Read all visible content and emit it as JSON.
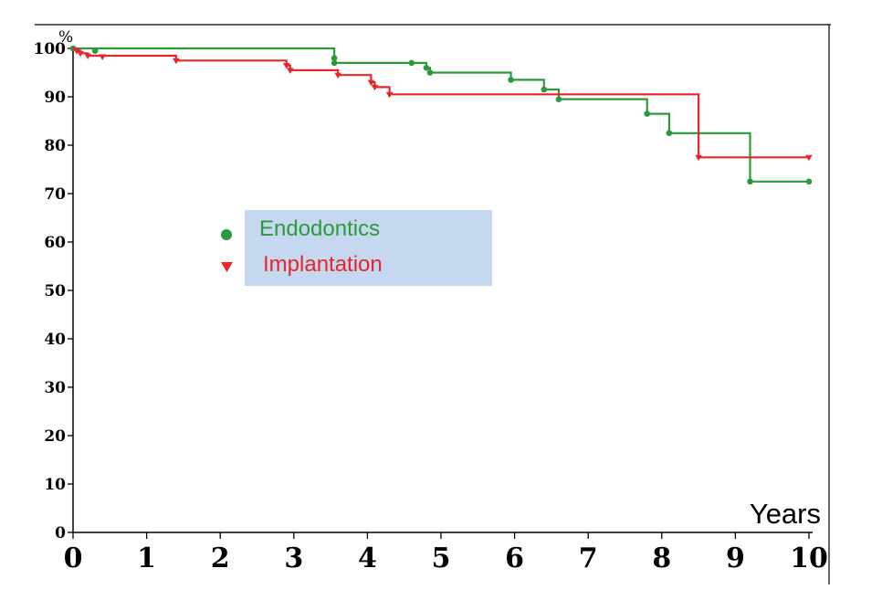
{
  "chart_data": {
    "type": "line",
    "title": "",
    "xlabel": "Years",
    "ylabel": "%",
    "xlim": [
      0,
      10
    ],
    "ylim": [
      0,
      100
    ],
    "x_ticks": [
      "0",
      "1",
      "2",
      "3",
      "4",
      "5",
      "6",
      "7",
      "8",
      "9",
      "10"
    ],
    "y_ticks": [
      "0",
      "10",
      "20",
      "30",
      "40",
      "50",
      "60",
      "70",
      "80",
      "90",
      "100"
    ],
    "grid": false,
    "legend_position": "center-left",
    "colors": {
      "Endodontics": "#2b9a3c",
      "Implantation": "#e8252a",
      "legend_background": "#c5d8ef",
      "axis": "#000000"
    },
    "series": [
      {
        "name": "Endodontics",
        "marker": "circle",
        "step_points": [
          [
            0,
            100
          ],
          [
            3.55,
            100
          ],
          [
            3.55,
            98
          ],
          [
            3.55,
            97
          ],
          [
            4.6,
            97
          ],
          [
            4.8,
            97
          ],
          [
            4.8,
            96
          ],
          [
            4.85,
            96
          ],
          [
            4.85,
            95
          ],
          [
            5.95,
            95
          ],
          [
            5.95,
            93.5
          ],
          [
            6.4,
            93.5
          ],
          [
            6.4,
            91.5
          ],
          [
            6.6,
            91.5
          ],
          [
            6.6,
            89.5
          ],
          [
            7.8,
            89.5
          ],
          [
            7.8,
            86.5
          ],
          [
            8.1,
            86.5
          ],
          [
            8.1,
            82.5
          ],
          [
            9.2,
            82.5
          ],
          [
            9.2,
            72.5
          ],
          [
            10,
            72.5
          ]
        ],
        "markers": [
          [
            0,
            100
          ],
          [
            0.3,
            99.5
          ],
          [
            3.55,
            98
          ],
          [
            3.55,
            97
          ],
          [
            4.6,
            97
          ],
          [
            4.8,
            96
          ],
          [
            4.85,
            95
          ],
          [
            5.95,
            93.5
          ],
          [
            6.4,
            91.5
          ],
          [
            6.6,
            89.5
          ],
          [
            7.8,
            86.5
          ],
          [
            8.1,
            82.5
          ],
          [
            9.2,
            72.5
          ],
          [
            10,
            72.5
          ]
        ]
      },
      {
        "name": "Implantation",
        "marker": "triangle-down",
        "step_points": [
          [
            0,
            100
          ],
          [
            0.05,
            100
          ],
          [
            0.05,
            99.5
          ],
          [
            0.1,
            99.5
          ],
          [
            0.1,
            99
          ],
          [
            0.2,
            99
          ],
          [
            0.2,
            98.5
          ],
          [
            1.4,
            98.5
          ],
          [
            1.4,
            97.5
          ],
          [
            2.9,
            97.5
          ],
          [
            2.9,
            96.5
          ],
          [
            2.95,
            96.5
          ],
          [
            2.95,
            95.5
          ],
          [
            3.6,
            95.5
          ],
          [
            3.6,
            94.5
          ],
          [
            4.05,
            94.5
          ],
          [
            4.05,
            93
          ],
          [
            4.1,
            93
          ],
          [
            4.1,
            92
          ],
          [
            4.3,
            92
          ],
          [
            4.3,
            90.5
          ],
          [
            8.5,
            90.5
          ],
          [
            8.5,
            77.5
          ],
          [
            10,
            77.5
          ]
        ],
        "markers": [
          [
            0.05,
            99.5
          ],
          [
            0.1,
            99
          ],
          [
            0.2,
            98.5
          ],
          [
            0.4,
            98.3
          ],
          [
            1.4,
            97.5
          ],
          [
            2.9,
            96.5
          ],
          [
            2.95,
            95.5
          ],
          [
            3.6,
            94.5
          ],
          [
            4.05,
            93
          ],
          [
            4.1,
            92
          ],
          [
            4.3,
            90.5
          ],
          [
            8.5,
            77.5
          ],
          [
            10,
            77.5
          ]
        ]
      }
    ]
  }
}
